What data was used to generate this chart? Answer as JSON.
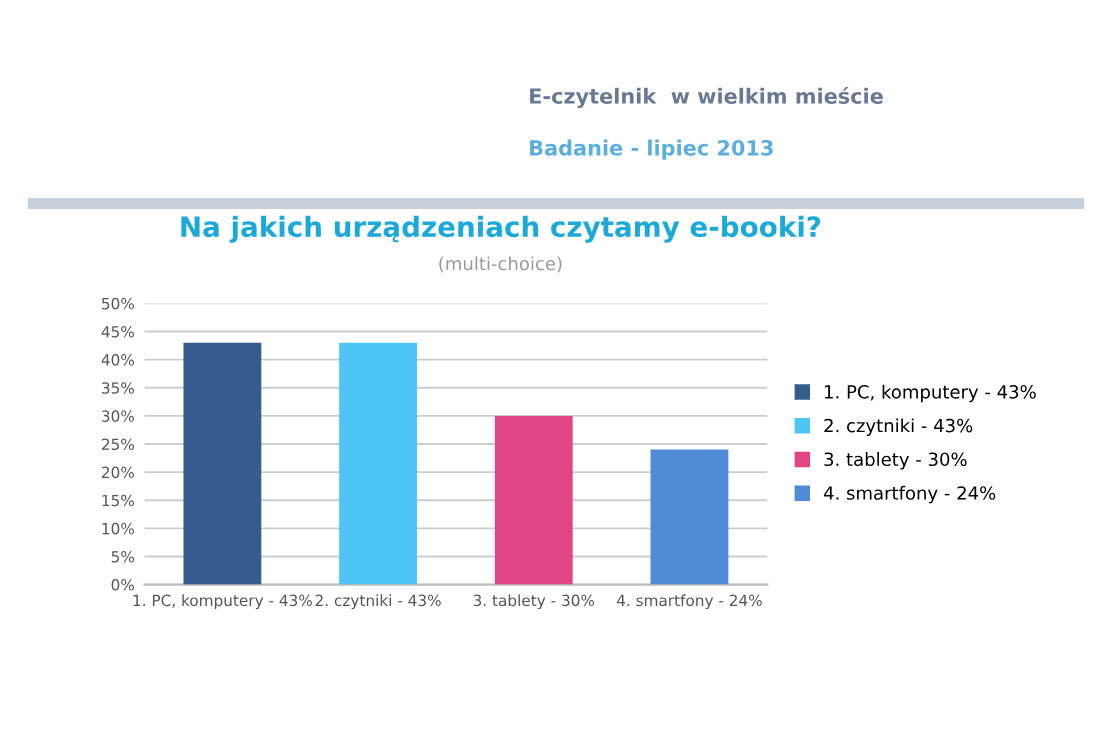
{
  "chart_data": {
    "type": "bar",
    "title": "Na jakich urządzeniach czytamy e-booki?",
    "subtitle": "(multi-choice)",
    "annotations": [
      "E-czytelnik  w wielkim mieście",
      "Badanie - lipiec 2013"
    ],
    "categories": [
      "1. PC, komputery - 43%",
      "2. czytniki - 43%",
      "3. tablety - 30%",
      "4. smartfony - 24%"
    ],
    "series": [
      {
        "name": "1. PC, komputery - 43%",
        "color": "#345d8e",
        "values": [
          43,
          null,
          null,
          null
        ]
      },
      {
        "name": "2. czytniki - 43%",
        "color": "#4cc6f5",
        "values": [
          null,
          43,
          null,
          null
        ]
      },
      {
        "name": "3. tablety - 30%",
        "color": "#e04584",
        "values": [
          null,
          null,
          30,
          null
        ]
      },
      {
        "name": "4. smartfony - 24%",
        "color": "#4f8bd6",
        "values": [
          null,
          null,
          null,
          24
        ]
      }
    ],
    "ylim": [
      0,
      50
    ],
    "yticks": [
      {
        "value": 0,
        "label": "0%"
      },
      {
        "value": 5,
        "label": "5%"
      },
      {
        "value": 10,
        "label": "10%"
      },
      {
        "value": 15,
        "label": "15%"
      },
      {
        "value": 20,
        "label": "20%"
      },
      {
        "value": 25,
        "label": "25%"
      },
      {
        "value": 30,
        "label": "30%"
      },
      {
        "value": 35,
        "label": "35%"
      },
      {
        "value": 40,
        "label": "40%"
      },
      {
        "value": 45,
        "label": "45%"
      },
      {
        "value": 50,
        "label": "50%"
      }
    ],
    "grid": "y",
    "legend": "right"
  }
}
